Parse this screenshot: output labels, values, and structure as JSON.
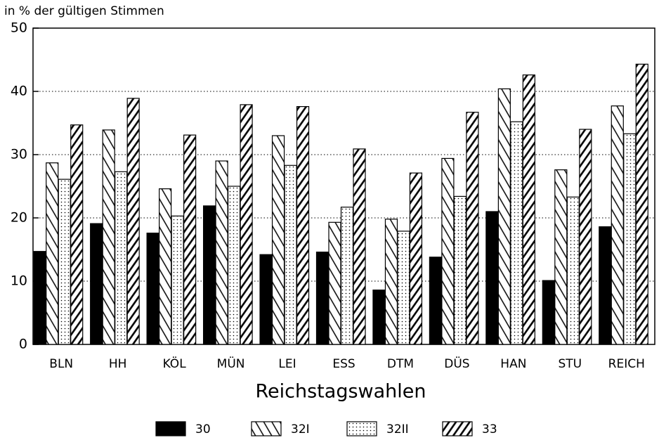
{
  "chart_data": {
    "type": "bar",
    "title": "in % der gültigen Stimmen",
    "x_label": "Reichstagswahlen",
    "categories": [
      "BLN",
      "HH",
      "KÖL",
      "MÜN",
      "LEI",
      "ESS",
      "DTM",
      "DÜS",
      "HAN",
      "STU",
      "REICH"
    ],
    "series": [
      {
        "name": "30",
        "color": "#000000",
        "pattern": "solid",
        "values": [
          14.7,
          19.1,
          17.6,
          21.9,
          14.2,
          14.6,
          8.6,
          13.8,
          21,
          10.1,
          18.6
        ]
      },
      {
        "name": "32I",
        "color": "#000000",
        "pattern": "backslash",
        "values": [
          28.7,
          33.9,
          24.6,
          29,
          33,
          19.3,
          19.8,
          29.4,
          40.4,
          27.6,
          37.7
        ]
      },
      {
        "name": "32II",
        "color": "#000000",
        "pattern": "dots",
        "values": [
          26.1,
          27.3,
          20.3,
          25,
          28.3,
          21.7,
          17.9,
          23.4,
          35.2,
          23.3,
          33.3
        ]
      },
      {
        "name": "33",
        "color": "#000000",
        "pattern": "slash",
        "values": [
          34.7,
          38.9,
          33.1,
          37.9,
          37.6,
          30.9,
          27.1,
          36.7,
          42.6,
          34,
          44.3
        ]
      }
    ],
    "ylim": [
      0,
      50
    ],
    "yticks": [
      0,
      10,
      20,
      30,
      40,
      50
    ],
    "grid": true,
    "legend": "bottom"
  }
}
